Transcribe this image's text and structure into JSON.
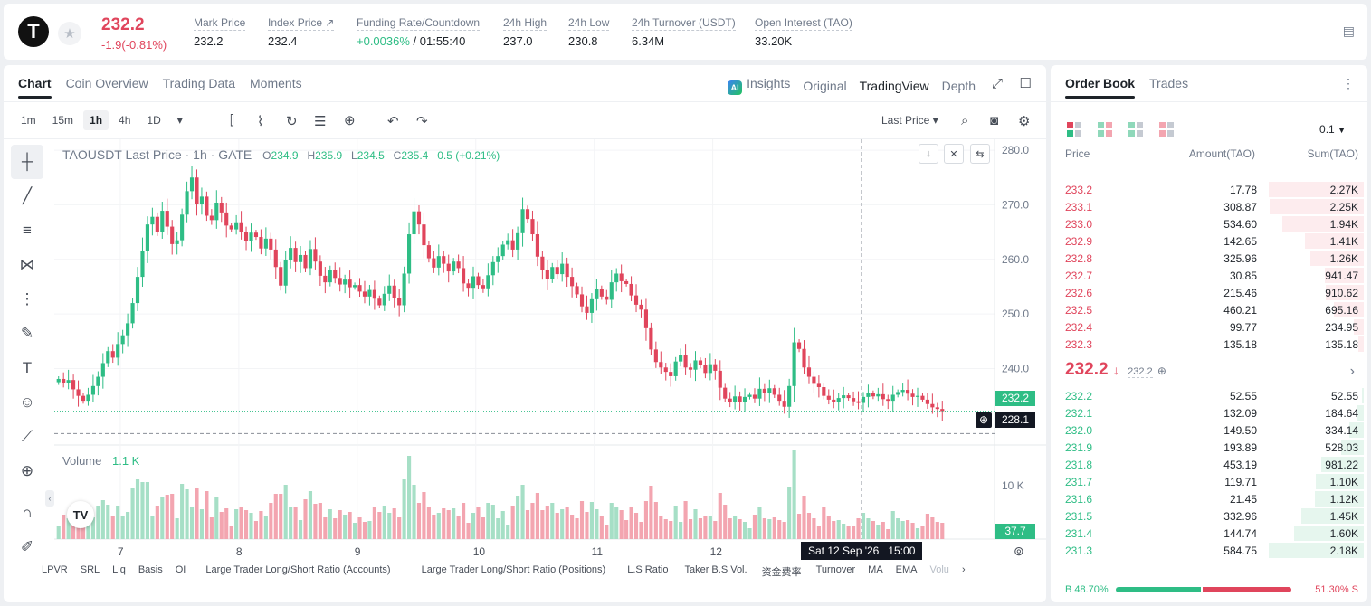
{
  "header": {
    "logo": "T",
    "last_price": "232.2",
    "change": "-1.9(-0.81%)",
    "stats": [
      {
        "label": "Mark Price",
        "value": "232.2"
      },
      {
        "label": "Index Price ↗",
        "value": "232.4"
      },
      {
        "label": "Funding Rate/Countdown",
        "value_green": "+0.0036%",
        "value_rest": " / 01:55:40"
      },
      {
        "label": "24h High",
        "value": "237.0"
      },
      {
        "label": "24h Low",
        "value": "230.8"
      },
      {
        "label": "24h Turnover (USDT)",
        "value": "6.34M"
      },
      {
        "label": "Open Interest (TAO)",
        "value": "33.20K"
      }
    ]
  },
  "chart_panel": {
    "tabs": [
      "Chart",
      "Coin Overview",
      "Trading Data",
      "Moments"
    ],
    "view_tabs": [
      "Insights",
      "Original",
      "TradingView",
      "Depth"
    ],
    "timeframes": [
      "1m",
      "15m",
      "1h",
      "4h",
      "1D"
    ],
    "price_type": "Last Price ▾",
    "legend": {
      "symbol": "TAOUSDT Last Price · 1h · GATE",
      "o_label": "O",
      "o": "234.9",
      "h_label": "H",
      "h": "235.9",
      "l_label": "L",
      "l": "234.5",
      "c_label": "C",
      "c": "235.4",
      "change": "0.5 (+0.21%)"
    },
    "volume_label": "Volume",
    "volume_value": "1.1 K",
    "current_price_tag": "232.2",
    "crosshair_price_tag": "228.1",
    "crosshair_time": "Sat 12 Sep '26   15:00",
    "volume_axis_label": "10 K",
    "volume_tag": "37.7",
    "bottom_indicators": [
      "LPVR",
      "SRL",
      "Liq",
      "Basis",
      "OI",
      "Large Trader Long/Short Ratio (Accounts)",
      "Large Trader Long/Short Ratio (Positions)",
      "L.S Ratio",
      "Taker B.S Vol.",
      "资金费率",
      "Turnover",
      "MA",
      "EMA",
      "Volu"
    ]
  },
  "chart_data": {
    "type": "candlestick",
    "title": "TAOUSDT Last Price · 1h · GATE",
    "y_ticks": [
      "280.0",
      "270.0",
      "260.0",
      "250.0",
      "240.0"
    ],
    "x_ticks": [
      "7",
      "8",
      "9",
      "10",
      "11",
      "12"
    ],
    "ylim": [
      226,
      282
    ],
    "last_price": 232.2,
    "crosshair_price": 228.1,
    "closes": [
      238.1,
      237.4,
      237.9,
      236.2,
      235.0,
      234.1,
      235.2,
      236.8,
      238.5,
      241.0,
      243.2,
      242.0,
      244.5,
      246.1,
      248.3,
      252.0,
      256.8,
      261.5,
      266.4,
      267.8,
      265.1,
      268.9,
      266.0,
      262.8,
      263.5,
      268.2,
      272.5,
      275.0,
      270.2,
      271.5,
      268.0,
      267.2,
      270.4,
      268.6,
      266.2,
      265.5,
      266.8,
      265.0,
      263.4,
      264.9,
      264.1,
      262.0,
      263.8,
      261.8,
      258.6,
      255.2,
      259.8,
      262.1,
      259.5,
      260.8,
      258.4,
      261.9,
      259.6,
      257.0,
      255.8,
      258.1,
      256.6,
      255.4,
      256.3,
      254.9,
      255.3,
      254.1,
      253.2,
      254.4,
      252.8,
      251.6,
      253.7,
      255.2,
      253.0,
      251.6,
      257.4,
      264.6,
      268.8,
      266.4,
      262.6,
      260.2,
      258.5,
      260.6,
      259.2,
      257.8,
      259.6,
      258.4,
      255.6,
      254.8,
      256.9,
      255.3,
      254.7,
      257.1,
      259.5,
      260.6,
      262.7,
      263.5,
      261.8,
      264.8,
      269.2,
      267.4,
      264.6,
      260.5,
      258.1,
      256.4,
      258.6,
      257.3,
      259.2,
      256.8,
      255.1,
      253.6,
      251.4,
      250.2,
      252.7,
      254.6,
      253.2,
      252.6,
      255.8,
      257.4,
      256.0,
      255.5,
      253.4,
      251.7,
      250.8,
      247.4,
      243.5,
      241.2,
      240.2,
      239.4,
      238.6,
      241.3,
      242.4,
      240.2,
      239.8,
      241.5,
      240.6,
      239.2,
      240.8,
      239.6,
      236.5,
      234.5,
      233.8,
      234.9,
      233.9,
      234.8,
      235.2,
      234.5,
      236.3,
      235.6,
      236.4,
      235.2,
      234.1,
      233.0,
      236.8,
      244.8,
      243.6,
      240.2,
      238.5,
      237.2,
      236.6,
      235.0,
      234.3,
      233.9,
      234.6,
      235.1,
      234.6,
      234.0,
      233.7,
      234.8,
      235.5,
      234.9,
      235.3,
      234.4,
      234.1,
      235.2,
      235.7,
      236.1,
      235.4,
      234.8,
      235.0,
      234.3,
      233.5,
      232.9,
      232.6,
      232.2
    ],
    "volume_scale_max": 16000
  },
  "orderbook": {
    "tabs": [
      "Order Book",
      "Trades"
    ],
    "precision": "0.1",
    "col_price": "Price",
    "col_amount": "Amount(TAO)",
    "col_sum": "Sum(TAO)",
    "asks": [
      {
        "price": "233.2",
        "amount": "17.78",
        "sum": "2.27K",
        "depth": 1.0
      },
      {
        "price": "233.1",
        "amount": "308.87",
        "sum": "2.25K",
        "depth": 0.99
      },
      {
        "price": "233.0",
        "amount": "534.60",
        "sum": "1.94K",
        "depth": 0.86
      },
      {
        "price": "232.9",
        "amount": "142.65",
        "sum": "1.41K",
        "depth": 0.62
      },
      {
        "price": "232.8",
        "amount": "325.96",
        "sum": "1.26K",
        "depth": 0.56
      },
      {
        "price": "232.7",
        "amount": "30.85",
        "sum": "941.47",
        "depth": 0.41
      },
      {
        "price": "232.6",
        "amount": "215.46",
        "sum": "910.62",
        "depth": 0.4
      },
      {
        "price": "232.5",
        "amount": "460.21",
        "sum": "695.16",
        "depth": 0.31
      },
      {
        "price": "232.4",
        "amount": "99.77",
        "sum": "234.95",
        "depth": 0.1
      },
      {
        "price": "232.3",
        "amount": "135.18",
        "sum": "135.18",
        "depth": 0.06
      }
    ],
    "mid_price": "232.2",
    "mid_mark": "232.2",
    "bids": [
      {
        "price": "232.2",
        "amount": "52.55",
        "sum": "52.55",
        "depth": 0.02
      },
      {
        "price": "232.1",
        "amount": "132.09",
        "sum": "184.64",
        "depth": 0.08
      },
      {
        "price": "232.0",
        "amount": "149.50",
        "sum": "334.14",
        "depth": 0.15
      },
      {
        "price": "231.9",
        "amount": "193.89",
        "sum": "528.03",
        "depth": 0.24
      },
      {
        "price": "231.8",
        "amount": "453.19",
        "sum": "981.22",
        "depth": 0.45
      },
      {
        "price": "231.7",
        "amount": "119.71",
        "sum": "1.10K",
        "depth": 0.5
      },
      {
        "price": "231.6",
        "amount": "21.45",
        "sum": "1.12K",
        "depth": 0.51
      },
      {
        "price": "231.5",
        "amount": "332.96",
        "sum": "1.45K",
        "depth": 0.66
      },
      {
        "price": "231.4",
        "amount": "144.74",
        "sum": "1.60K",
        "depth": 0.73
      },
      {
        "price": "231.3",
        "amount": "584.75",
        "sum": "2.18K",
        "depth": 1.0
      }
    ],
    "buy_label": "B 48.70%",
    "sell_label": "51.30% S",
    "buy_ratio": 0.487
  },
  "colors": {
    "up": "#2ebd85",
    "down": "#e0455c",
    "up_vol": "#a6dfc6",
    "down_vol": "#f3a5b0"
  }
}
